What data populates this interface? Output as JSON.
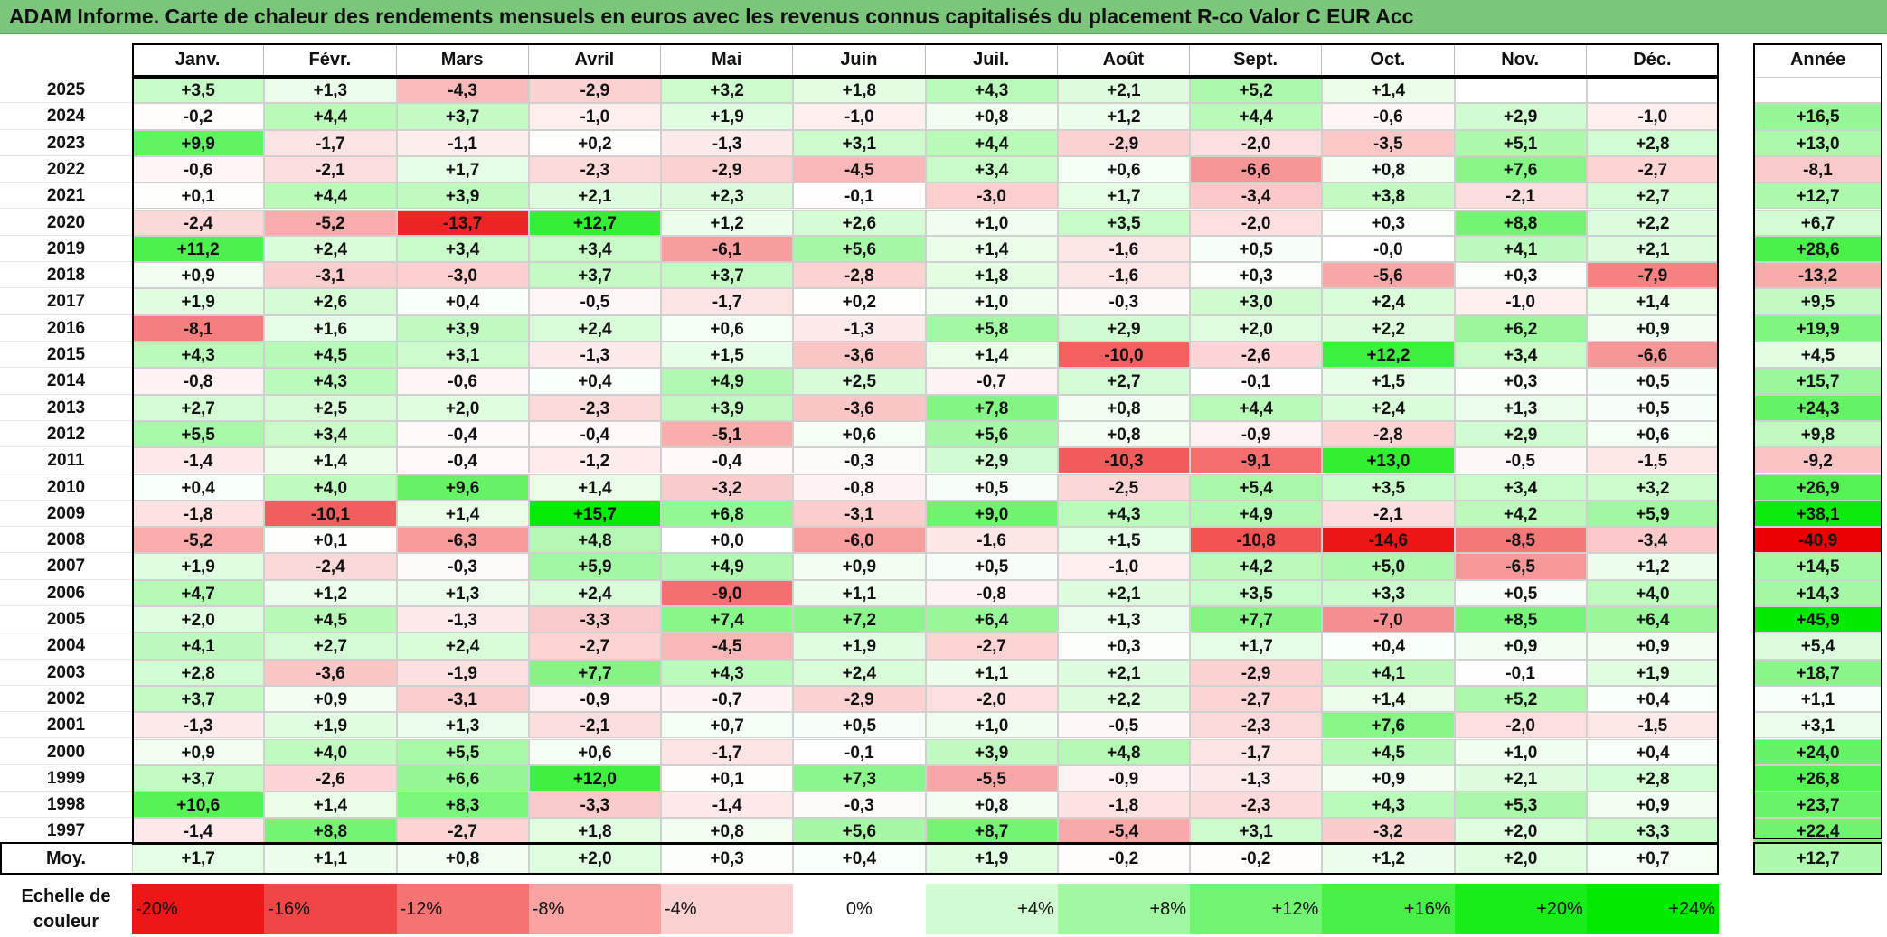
{
  "title": "ADAM Informe. Carte de chaleur des rendements mensuels en euros avec les revenus connus capitalisés du placement R-co Valor C EUR Acc",
  "chart_data": {
    "type": "heatmap",
    "title": "ADAM Informe. Carte de chaleur des rendements mensuels en euros avec les revenus connus capitalisés du placement R-co Valor C EUR Acc",
    "columns": [
      "Janv.",
      "Févr.",
      "Mars",
      "Avril",
      "Mai",
      "Juin",
      "Juil.",
      "Août",
      "Sept.",
      "Oct.",
      "Nov.",
      "Déc."
    ],
    "year_column_label": "Année",
    "rows": [
      {
        "year": "2025",
        "values": [
          "+3,5",
          "+1,3",
          "-4,3",
          "-2,9",
          "+3,2",
          "+1,8",
          "+4,3",
          "+2,1",
          "+5,2",
          "+1,4",
          "",
          ""
        ],
        "annual": ""
      },
      {
        "year": "2024",
        "values": [
          "-0,2",
          "+4,4",
          "+3,7",
          "-1,0",
          "+1,9",
          "-1,0",
          "+0,8",
          "+1,2",
          "+4,4",
          "-0,6",
          "+2,9",
          "-1,0"
        ],
        "annual": "+16,5"
      },
      {
        "year": "2023",
        "values": [
          "+9,9",
          "-1,7",
          "-1,1",
          "+0,2",
          "-1,3",
          "+3,1",
          "+4,4",
          "-2,9",
          "-2,0",
          "-3,5",
          "+5,1",
          "+2,8"
        ],
        "annual": "+13,0"
      },
      {
        "year": "2022",
        "values": [
          "-0,6",
          "-2,1",
          "+1,7",
          "-2,3",
          "-2,9",
          "-4,5",
          "+3,4",
          "+0,6",
          "-6,6",
          "+0,8",
          "+7,6",
          "-2,7"
        ],
        "annual": "-8,1"
      },
      {
        "year": "2021",
        "values": [
          "+0,1",
          "+4,4",
          "+3,9",
          "+2,1",
          "+2,3",
          "-0,1",
          "-3,0",
          "+1,7",
          "-3,4",
          "+3,8",
          "-2,1",
          "+2,7"
        ],
        "annual": "+12,7"
      },
      {
        "year": "2020",
        "values": [
          "-2,4",
          "-5,2",
          "-13,7",
          "+12,7",
          "+1,2",
          "+2,6",
          "+1,0",
          "+3,5",
          "-2,0",
          "+0,3",
          "+8,8",
          "+2,2"
        ],
        "annual": "+6,7"
      },
      {
        "year": "2019",
        "values": [
          "+11,2",
          "+2,4",
          "+3,4",
          "+3,4",
          "-6,1",
          "+5,6",
          "+1,4",
          "-1,6",
          "+0,5",
          "-0,0",
          "+4,1",
          "+2,1"
        ],
        "annual": "+28,6"
      },
      {
        "year": "2018",
        "values": [
          "+0,9",
          "-3,1",
          "-3,0",
          "+3,7",
          "+3,7",
          "-2,8",
          "+1,8",
          "-1,6",
          "+0,3",
          "-5,6",
          "+0,3",
          "-7,9"
        ],
        "annual": "-13,2"
      },
      {
        "year": "2017",
        "values": [
          "+1,9",
          "+2,6",
          "+0,4",
          "-0,5",
          "-1,7",
          "+0,2",
          "+1,0",
          "-0,3",
          "+3,0",
          "+2,4",
          "-1,0",
          "+1,4"
        ],
        "annual": "+9,5"
      },
      {
        "year": "2016",
        "values": [
          "-8,1",
          "+1,6",
          "+3,9",
          "+2,4",
          "+0,6",
          "-1,3",
          "+5,8",
          "+2,9",
          "+2,0",
          "+2,2",
          "+6,2",
          "+0,9"
        ],
        "annual": "+19,9"
      },
      {
        "year": "2015",
        "values": [
          "+4,3",
          "+4,5",
          "+3,1",
          "-1,3",
          "+1,5",
          "-3,6",
          "+1,4",
          "-10,0",
          "-2,6",
          "+12,2",
          "+3,4",
          "-6,6"
        ],
        "annual": "+4,5"
      },
      {
        "year": "2014",
        "values": [
          "-0,8",
          "+4,3",
          "-0,6",
          "+0,4",
          "+4,9",
          "+2,5",
          "-0,7",
          "+2,7",
          "-0,1",
          "+1,5",
          "+0,3",
          "+0,5"
        ],
        "annual": "+15,7"
      },
      {
        "year": "2013",
        "values": [
          "+2,7",
          "+2,5",
          "+2,0",
          "-2,3",
          "+3,9",
          "-3,6",
          "+7,8",
          "+0,8",
          "+4,4",
          "+2,4",
          "+1,3",
          "+0,5"
        ],
        "annual": "+24,3"
      },
      {
        "year": "2012",
        "values": [
          "+5,5",
          "+3,4",
          "-0,4",
          "-0,4",
          "-5,1",
          "+0,6",
          "+5,6",
          "+0,8",
          "-0,9",
          "-2,8",
          "+2,9",
          "+0,6"
        ],
        "annual": "+9,8"
      },
      {
        "year": "2011",
        "values": [
          "-1,4",
          "+1,4",
          "-0,4",
          "-1,2",
          "-0,4",
          "-0,3",
          "+2,9",
          "-10,3",
          "-9,1",
          "+13,0",
          "-0,5",
          "-1,5"
        ],
        "annual": "-9,2"
      },
      {
        "year": "2010",
        "values": [
          "+0,4",
          "+4,0",
          "+9,6",
          "+1,4",
          "-3,2",
          "-0,8",
          "+0,5",
          "-2,5",
          "+5,4",
          "+3,5",
          "+3,4",
          "+3,2"
        ],
        "annual": "+26,9"
      },
      {
        "year": "2009",
        "values": [
          "-1,8",
          "-10,1",
          "+1,4",
          "+15,7",
          "+6,8",
          "-3,1",
          "+9,0",
          "+4,3",
          "+4,9",
          "-2,1",
          "+4,2",
          "+5,9"
        ],
        "annual": "+38,1"
      },
      {
        "year": "2008",
        "values": [
          "-5,2",
          "+0,1",
          "-6,3",
          "+4,8",
          "+0,0",
          "-6,0",
          "-1,6",
          "+1,5",
          "-10,8",
          "-14,6",
          "-8,5",
          "-3,4"
        ],
        "annual": "-40,9"
      },
      {
        "year": "2007",
        "values": [
          "+1,9",
          "-2,4",
          "-0,3",
          "+5,9",
          "+4,9",
          "+0,9",
          "+0,5",
          "-1,0",
          "+4,2",
          "+5,0",
          "-6,5",
          "+1,2"
        ],
        "annual": "+14,5"
      },
      {
        "year": "2006",
        "values": [
          "+4,7",
          "+1,2",
          "+1,3",
          "+2,4",
          "-9,0",
          "+1,1",
          "-0,8",
          "+2,1",
          "+3,5",
          "+3,3",
          "+0,5",
          "+4,0"
        ],
        "annual": "+14,3"
      },
      {
        "year": "2005",
        "values": [
          "+2,0",
          "+4,5",
          "-1,3",
          "-3,3",
          "+7,4",
          "+7,2",
          "+6,4",
          "+1,3",
          "+7,7",
          "-7,0",
          "+8,5",
          "+6,4"
        ],
        "annual": "+45,9"
      },
      {
        "year": "2004",
        "values": [
          "+4,1",
          "+2,7",
          "+2,4",
          "-2,7",
          "-4,5",
          "+1,9",
          "-2,7",
          "+0,3",
          "+1,7",
          "+0,4",
          "+0,9",
          "+0,9"
        ],
        "annual": "+5,4"
      },
      {
        "year": "2003",
        "values": [
          "+2,8",
          "-3,6",
          "-1,9",
          "+7,7",
          "+4,3",
          "+2,4",
          "+1,1",
          "+2,1",
          "-2,9",
          "+4,1",
          "-0,1",
          "+1,9"
        ],
        "annual": "+18,7"
      },
      {
        "year": "2002",
        "values": [
          "+3,7",
          "+0,9",
          "-3,1",
          "-0,9",
          "-0,7",
          "-2,9",
          "-2,0",
          "+2,2",
          "-2,7",
          "+1,4",
          "+5,2",
          "+0,4"
        ],
        "annual": "+1,1"
      },
      {
        "year": "2001",
        "values": [
          "-1,3",
          "+1,9",
          "+1,3",
          "-2,1",
          "+0,7",
          "+0,5",
          "+1,0",
          "-0,5",
          "-2,3",
          "+7,6",
          "-2,0",
          "-1,5"
        ],
        "annual": "+3,1"
      },
      {
        "year": "2000",
        "values": [
          "+0,9",
          "+4,0",
          "+5,5",
          "+0,6",
          "-1,7",
          "-0,1",
          "+3,9",
          "+4,8",
          "-1,7",
          "+4,5",
          "+1,0",
          "+0,4"
        ],
        "annual": "+24,0"
      },
      {
        "year": "1999",
        "values": [
          "+3,7",
          "-2,6",
          "+6,6",
          "+12,0",
          "+0,1",
          "+7,3",
          "-5,5",
          "-0,9",
          "-1,3",
          "+0,9",
          "+2,1",
          "+2,8"
        ],
        "annual": "+26,8"
      },
      {
        "year": "1998",
        "values": [
          "+10,6",
          "+1,4",
          "+8,3",
          "-3,3",
          "-1,4",
          "-0,3",
          "+0,8",
          "-1,8",
          "-2,3",
          "+4,3",
          "+5,3",
          "+0,9"
        ],
        "annual": "+23,7"
      },
      {
        "year": "1997",
        "values": [
          "-1,4",
          "+8,8",
          "-2,7",
          "+1,8",
          "+0,8",
          "+5,6",
          "+8,7",
          "-5,4",
          "+3,1",
          "-3,2",
          "+2,0",
          "+3,3"
        ],
        "annual": "+22,4"
      }
    ],
    "average": {
      "label": "Moy.",
      "values": [
        "+1,7",
        "+1,1",
        "+0,8",
        "+2,0",
        "+0,3",
        "+0,4",
        "+1,9",
        "-0,2",
        "-0,2",
        "+1,2",
        "+2,0",
        "+0,7"
      ],
      "annual": "+12,7"
    },
    "scale": {
      "label_line1": "Echelle de",
      "label_line2": "couleur",
      "labels": [
        "-20%",
        "-16%",
        "-12%",
        "-8%",
        "-4%",
        "0%",
        "+4%",
        "+8%",
        "+12%",
        "+16%",
        "+20%",
        "+24%"
      ],
      "values": [
        -20,
        -16,
        -12,
        -8,
        -4,
        0,
        4,
        8,
        12,
        16,
        20,
        24
      ]
    },
    "colors": {
      "negative": "#ff0000",
      "positive": "#00ee00",
      "neutral": "#ffffff",
      "title_bar": "#7bc67b"
    }
  }
}
